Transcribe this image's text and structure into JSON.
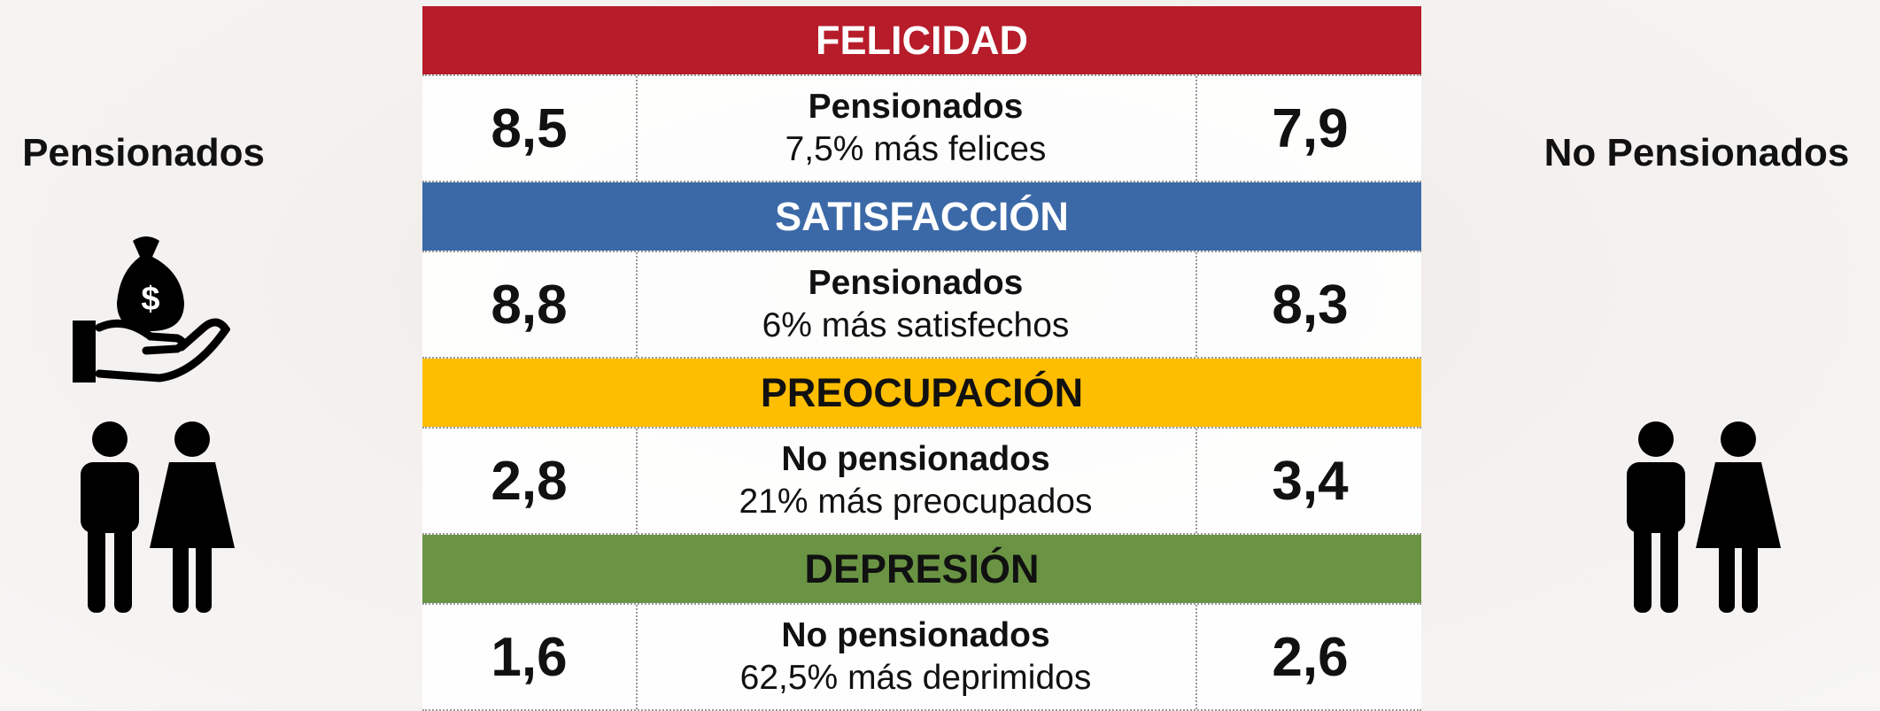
{
  "left_label": "Pensionados",
  "right_label": "No Pensionados",
  "sections": [
    {
      "title": "FELICIDAD",
      "color": "#b71c2a",
      "title_color": "#ffffff",
      "left": "8,5",
      "right": "7,9",
      "group": "Pensionados",
      "note": "7,5% más felices"
    },
    {
      "title": "SATISFACCIÓN",
      "color": "#3b69a8",
      "title_color": "#ffffff",
      "left": "8,8",
      "right": "8,3",
      "group": "Pensionados",
      "note": "6% más satisfechos"
    },
    {
      "title": "PREOCUPACIÓN",
      "color": "#fdbd00",
      "title_color": "#111111",
      "left": "2,8",
      "right": "3,4",
      "group": "No pensionados",
      "note": "21% más preocupados"
    },
    {
      "title": "DEPRESIÓN",
      "color": "#6a9444",
      "title_color": "#111111",
      "left": "1,6",
      "right": "2,6",
      "group": "No pensionados",
      "note": "62,5% más deprimidos"
    }
  ]
}
